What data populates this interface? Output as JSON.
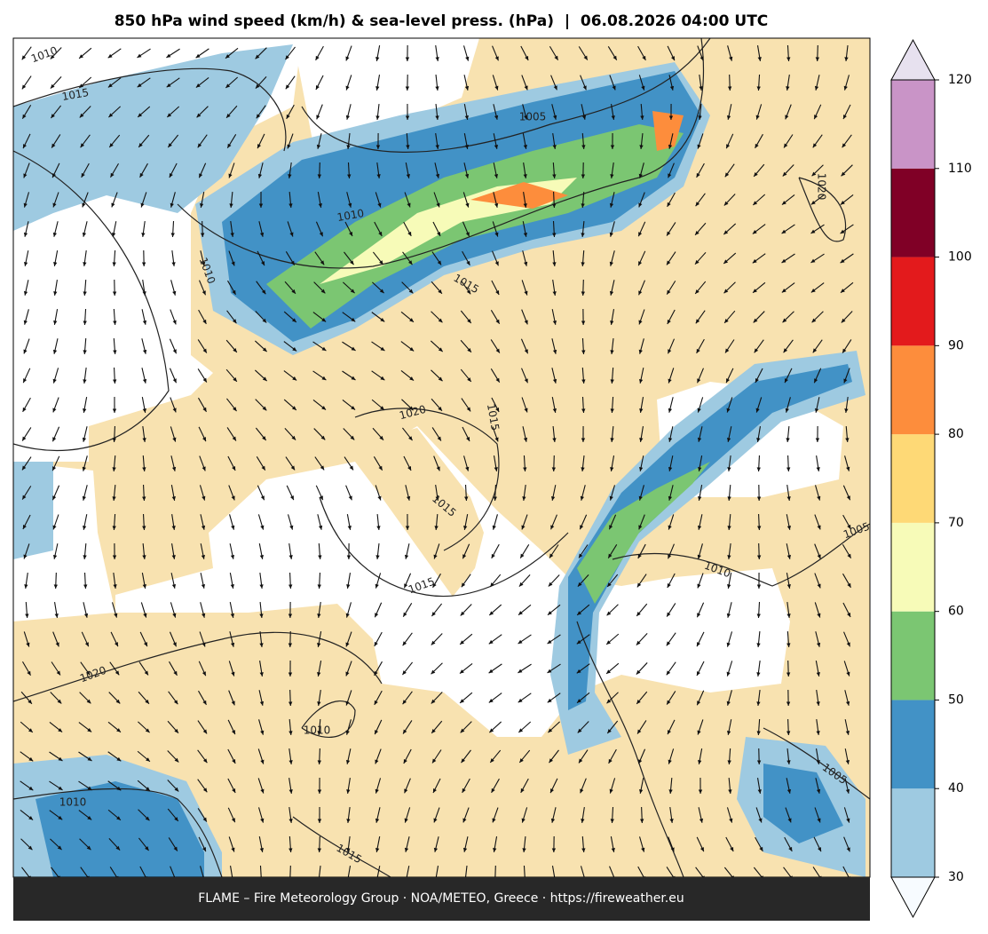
{
  "header": {
    "title": "850 hPa wind speed (km/h) & sea-level press. (hPa)  |  06.08.2026 04:00 UTC"
  },
  "map": {
    "isobar_labels": [
      "1010",
      "1015",
      "1005",
      "1010",
      "1020",
      "1010",
      "1015",
      "1020",
      "1015",
      "1015",
      "1015",
      "1010",
      "1005",
      "1020",
      "1010",
      "1010",
      "1005",
      "1015"
    ]
  },
  "colorbar": {
    "ticks": [
      30,
      40,
      50,
      60,
      70,
      80,
      90,
      100,
      110,
      120
    ],
    "colors": [
      "#9ecae1",
      "#4292c6",
      "#7bc672",
      "#f7fbb8",
      "#fed976",
      "#fd8d3c",
      "#e31a1c",
      "#800026",
      "#c994c7"
    ],
    "under_color": "#f7fbff",
    "over_color": "#e7e1ef"
  },
  "footer": {
    "text": "FLAME – Fire Meteorology Group · NOA/METEO, Greece · https://fireweather.eu"
  }
}
